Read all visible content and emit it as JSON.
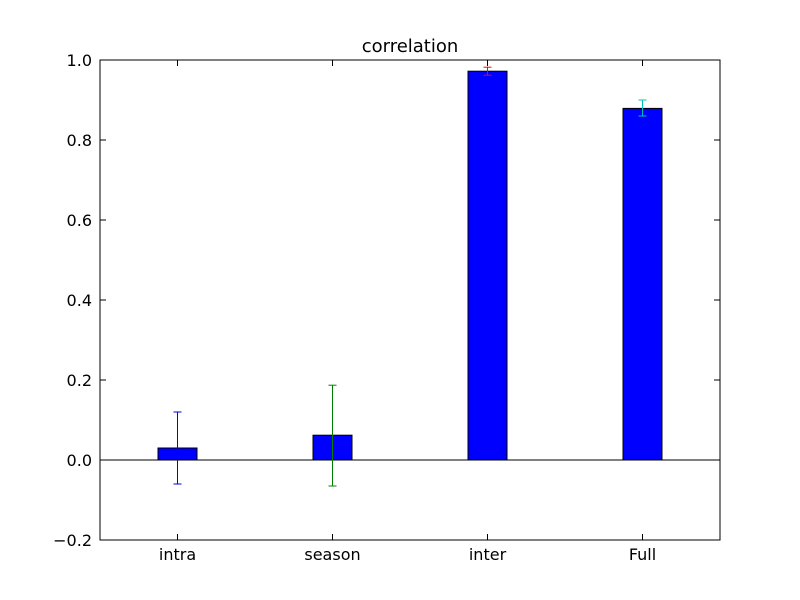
{
  "chart_data": {
    "type": "bar",
    "title": "correlation",
    "xlabel": "",
    "ylabel": "",
    "categories": [
      "intra",
      "season",
      "inter",
      "Full"
    ],
    "values": [
      0.03,
      0.062,
      0.972,
      0.879
    ],
    "errors": [
      {
        "low": -0.06,
        "high": 0.12,
        "color": "#0000ff"
      },
      {
        "low": -0.065,
        "high": 0.187,
        "color": "#008000"
      },
      {
        "low": 0.962,
        "high": 0.982,
        "color": "#ff0000"
      },
      {
        "low": 0.86,
        "high": 0.9,
        "color": "#00bfbf"
      }
    ],
    "ylim": [
      -0.2,
      1.0
    ],
    "yticks": [
      -0.2,
      0.0,
      0.2,
      0.4,
      0.6,
      0.8,
      1.0
    ],
    "ytick_labels": [
      "−0.2",
      "0.0",
      "0.2",
      "0.4",
      "0.6",
      "0.8",
      "1.0"
    ],
    "grid": false,
    "baseline": 0,
    "bar_color": "#0000ff",
    "edge_color": "#000000"
  }
}
